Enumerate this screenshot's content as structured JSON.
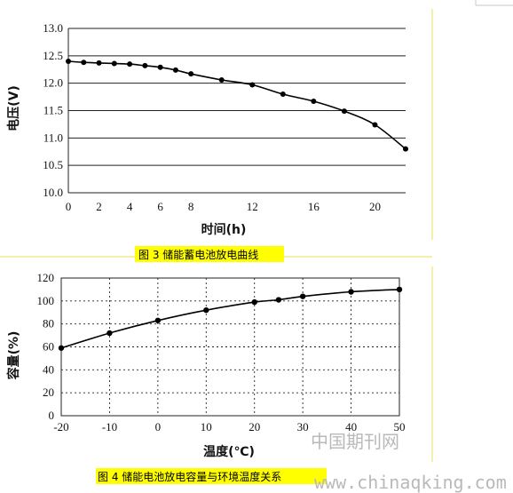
{
  "chart_data": [
    {
      "type": "line",
      "caption": "图 3 储能蓄电池放电曲线",
      "xlabel": "时间(h)",
      "ylabel": "电压(V)",
      "xlim": [
        0,
        22
      ],
      "ylim": [
        10.0,
        13.0
      ],
      "xticks": [
        "0",
        "2",
        "4",
        "6",
        "8",
        "12",
        "16",
        "20"
      ],
      "yticks": [
        "10.0",
        "10.5",
        "11.0",
        "11.5",
        "12.0",
        "12.5",
        "13.0"
      ],
      "grid": "horizontal",
      "series": [
        {
          "x": [
            0,
            1,
            2,
            3,
            4,
            5,
            6,
            7,
            8,
            10,
            12,
            14,
            16,
            18,
            20,
            22
          ],
          "y": [
            12.4,
            12.38,
            12.37,
            12.36,
            12.35,
            12.32,
            12.29,
            12.24,
            12.17,
            12.06,
            11.97,
            11.8,
            11.67,
            11.49,
            11.24,
            10.8
          ]
        }
      ]
    },
    {
      "type": "line",
      "caption": "图 4 储能电池放电容量与环境温度关系",
      "xlabel": "温度(℃)",
      "ylabel": "容量(%)",
      "xlim": [
        -20,
        50
      ],
      "ylim": [
        0,
        120
      ],
      "xticks": [
        "-20",
        "-10",
        "0",
        "10",
        "20",
        "30",
        "40",
        "50"
      ],
      "yticks": [
        "0",
        "20",
        "40",
        "60",
        "80",
        "100",
        "120"
      ],
      "grid": "dotted",
      "series": [
        {
          "x": [
            -20,
            -10,
            0,
            10,
            20,
            25,
            30,
            40,
            50
          ],
          "y": [
            59,
            72,
            83,
            92,
            99,
            101,
            104,
            108,
            110
          ]
        }
      ]
    }
  ],
  "watermark": {
    "cn": "中国期刊网",
    "url": "www.chinaqking.com"
  },
  "colors": {
    "caption_bg": "#ffff00",
    "frame_line": "#f0ec8a",
    "line": "#000000"
  }
}
